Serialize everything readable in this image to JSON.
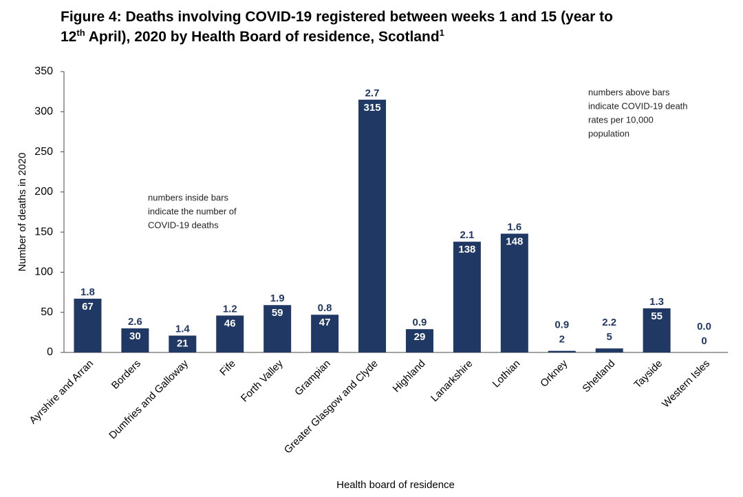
{
  "chart_data": {
    "type": "bar",
    "title": [
      [
        {
          "text": "Figure 4: Deaths involving COVID-19 registered between weeks 1 and 15 (year to"
        }
      ],
      [
        {
          "text": "12"
        },
        {
          "text": "th",
          "sup": true
        },
        {
          "text": " April), 2020 by Health Board of residence, Scotland"
        },
        {
          "text": "1",
          "sup": true
        }
      ]
    ],
    "x_label": "Health board of residence",
    "y_label": "Number of deaths in 2020",
    "categories": [
      "Ayrshire and Arran",
      "Borders",
      "Dumfries and Galloway",
      "Fife",
      "Forth Valley",
      "Grampian",
      "Greater Glasgow and Clyde",
      "Highland",
      "Lanarkshire",
      "Lothian",
      "Orkney",
      "Shetland",
      "Tayside",
      "Western Isles"
    ],
    "values": [
      67,
      30,
      21,
      46,
      59,
      47,
      315,
      29,
      138,
      148,
      2,
      5,
      55,
      0
    ],
    "rates": {
      "values": [
        1.8,
        2.6,
        1.4,
        1.2,
        1.9,
        0.8,
        2.7,
        0.9,
        2.1,
        1.6,
        0.9,
        2.2,
        1.3,
        0.0
      ],
      "value_labels": [
        "1.8",
        "2.6",
        "1.4",
        "1.2",
        "1.9",
        "0.8",
        "2.7",
        "0.9",
        "2.1",
        "1.6",
        "0.9",
        "2.2",
        "1.3",
        "0.0"
      ]
    },
    "color": "#1f3864",
    "ylim": [
      0,
      350
    ],
    "yticks": [
      0,
      50,
      100,
      150,
      200,
      250,
      300,
      350
    ],
    "grid": false,
    "annotations": [
      [
        "numbers inside bars",
        "indicate the number of",
        "COVID-19 deaths"
      ],
      [
        "numbers above bars",
        "indicate COVID-19 death",
        "rates per 10,000",
        "population"
      ]
    ]
  }
}
